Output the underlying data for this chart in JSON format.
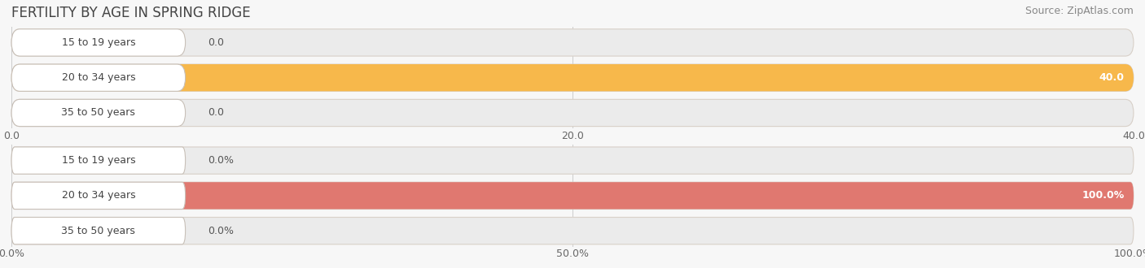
{
  "title": "FERTILITY BY AGE IN SPRING RIDGE",
  "source": "Source: ZipAtlas.com",
  "top_chart": {
    "categories": [
      "15 to 19 years",
      "20 to 34 years",
      "35 to 50 years"
    ],
    "values": [
      0.0,
      40.0,
      0.0
    ],
    "max_val": 40.0,
    "xticks": [
      0.0,
      20.0,
      40.0
    ],
    "xtick_labels": [
      "0.0",
      "20.0",
      "40.0"
    ],
    "bar_color": "#F7B84B",
    "bg_bar_color": "#EBEBEB",
    "bar_edge_color": "#E0D8CE"
  },
  "bottom_chart": {
    "categories": [
      "15 to 19 years",
      "20 to 34 years",
      "35 to 50 years"
    ],
    "values": [
      0.0,
      100.0,
      0.0
    ],
    "max_val": 100.0,
    "xticks": [
      0.0,
      50.0,
      100.0
    ],
    "xtick_labels": [
      "0.0%",
      "50.0%",
      "100.0%"
    ],
    "bar_color": "#E07870",
    "bg_bar_color": "#EBEBEB",
    "bar_edge_color": "#E0D8CE"
  },
  "background_color": "#f7f7f7",
  "title_fontsize": 12,
  "source_fontsize": 9,
  "value_fontsize": 9,
  "tick_fontsize": 9,
  "category_fontsize": 9
}
